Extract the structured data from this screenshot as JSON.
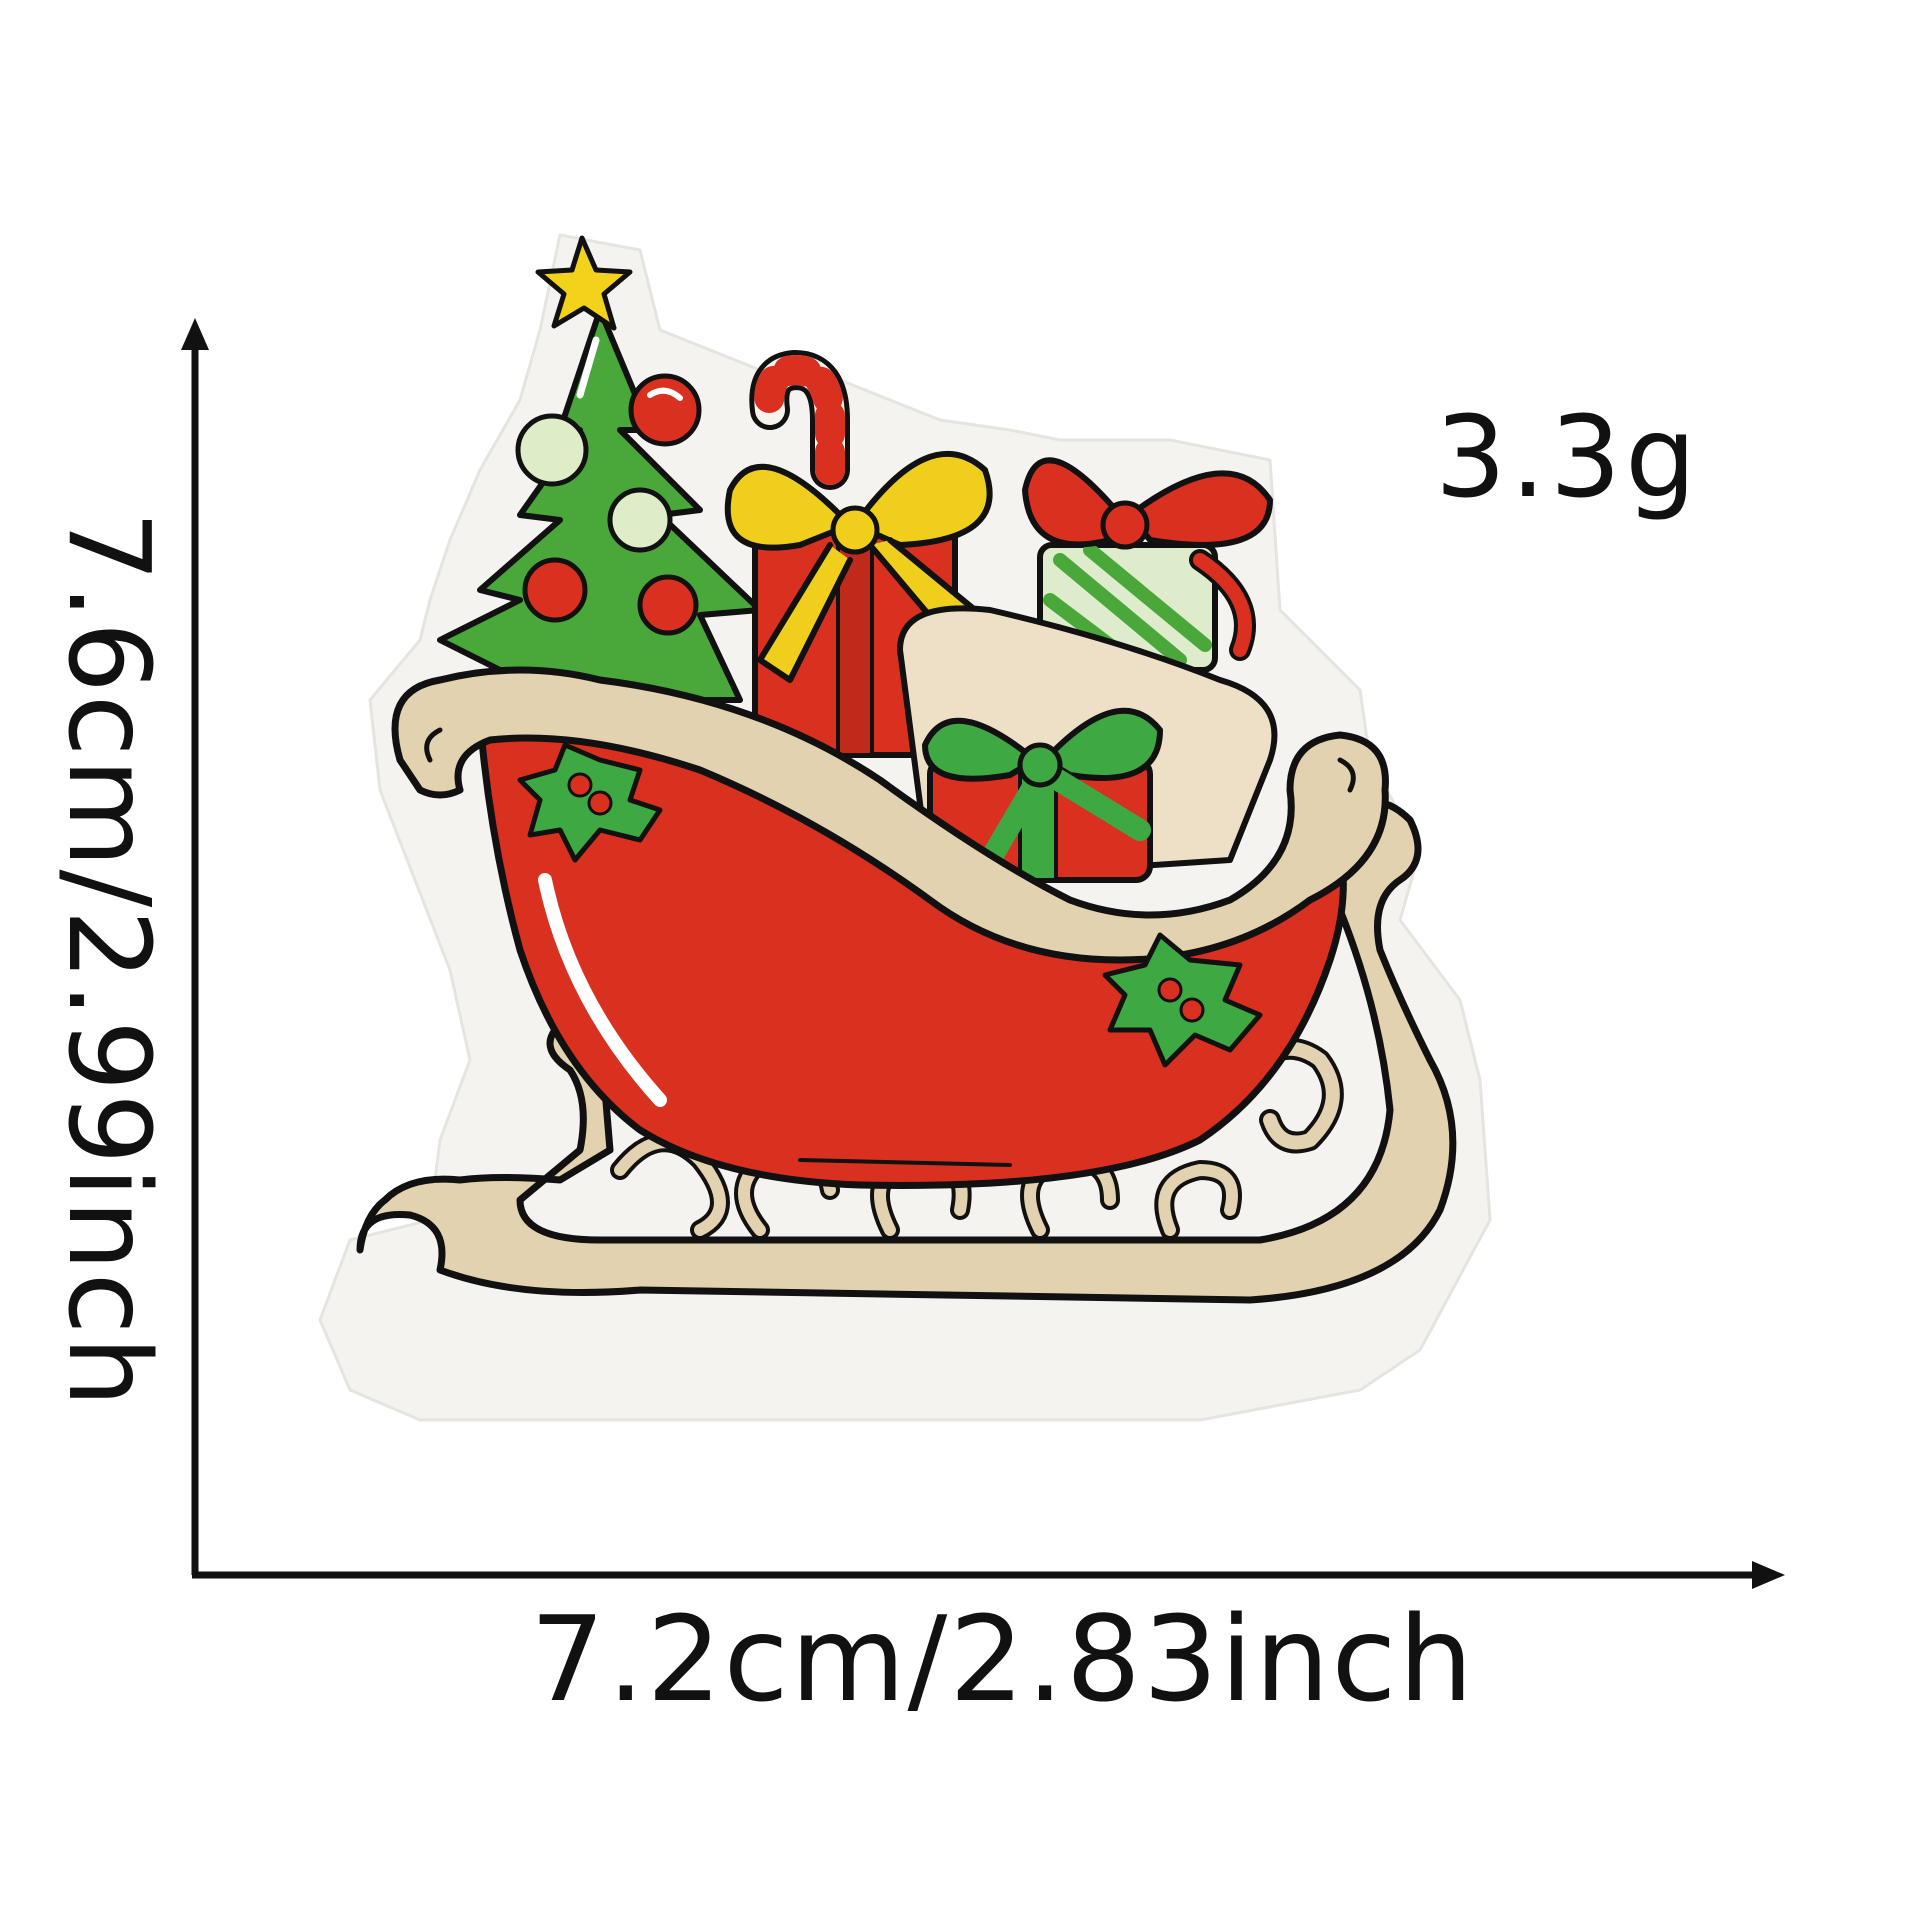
{
  "product": {
    "name": "christmas-sleigh-embroidered-patch",
    "weight": "3.3g",
    "width_label": "7.2cm/2.83inch",
    "height_label": "7.6cm/2.99inch"
  },
  "colors": {
    "background": "#ffffff",
    "outline": "#111111",
    "sleigh_red": "#d9301f",
    "cream": "#e3d2b0",
    "tree_green": "#4aa83a",
    "star_yellow": "#f2d21a",
    "ribbon_yellow": "#f0cf1c",
    "ribbon_green": "#3ea843"
  },
  "icons": [
    "christmas-tree-icon",
    "star-icon",
    "gift-box-icon",
    "candy-cane-icon",
    "sack-icon",
    "holly-icon",
    "sleigh-runner-icon",
    "arrow-up-icon",
    "arrow-right-icon"
  ]
}
